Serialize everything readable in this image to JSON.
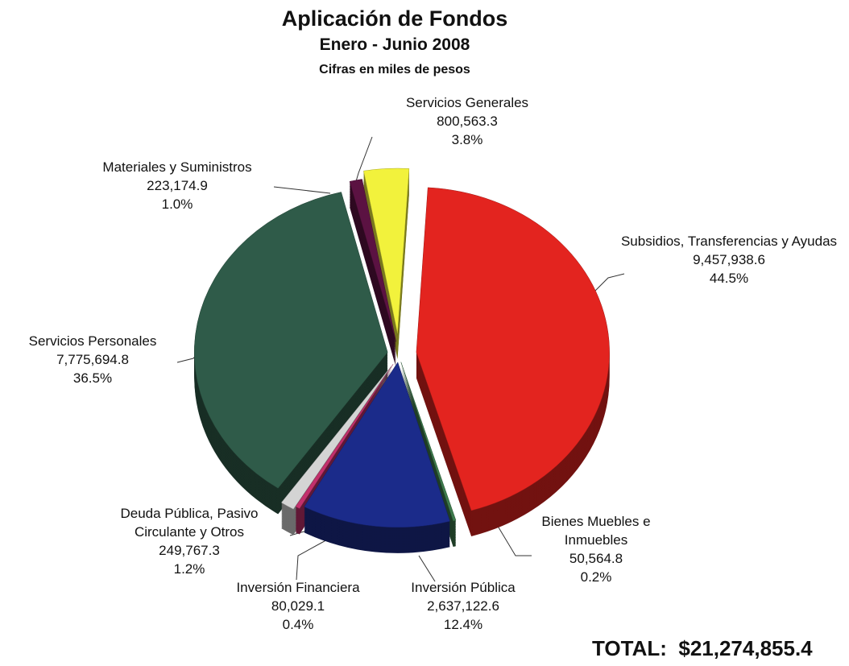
{
  "chart_data": {
    "type": "pie",
    "title": "Aplicación de Fondos",
    "subtitle": "Enero - Junio 2008",
    "note": "Cifras en miles de pesos",
    "categories": [
      "Subsidios, Transferencias y Ayudas",
      "Bienes Muebles e Inmuebles",
      "Inversión Pública",
      "Inversión Financiera",
      "Deuda Pública, Pasivo Circulante y Otros",
      "Servicios Personales",
      "Materiales y Suministros",
      "Servicios Generales"
    ],
    "values": [
      9457938.6,
      50564.8,
      2637122.6,
      80029.1,
      249767.3,
      7775694.8,
      223174.9,
      800563.3
    ],
    "value_labels": [
      "9,457,938.6",
      "50,564.8",
      "2,637,122.6",
      "80,029.1",
      "249,767.3",
      "7,775,694.8",
      "223,174.9",
      "800,563.3"
    ],
    "percentages": [
      44.5,
      0.2,
      12.4,
      0.4,
      1.2,
      36.5,
      1.0,
      3.8
    ],
    "percentage_labels": [
      "44.5%",
      "0.2%",
      "12.4%",
      "0.4%",
      "1.2%",
      "36.5%",
      "1.0%",
      "3.8%"
    ],
    "colors": [
      "#e3241f",
      "#3d7a4c",
      "#1b2b8a",
      "#c2306c",
      "#d4d4d4",
      "#2f5b49",
      "#5b1242",
      "#f2f23c"
    ],
    "total_prefix": "TOTAL:",
    "total": "$21,274,855.4"
  }
}
